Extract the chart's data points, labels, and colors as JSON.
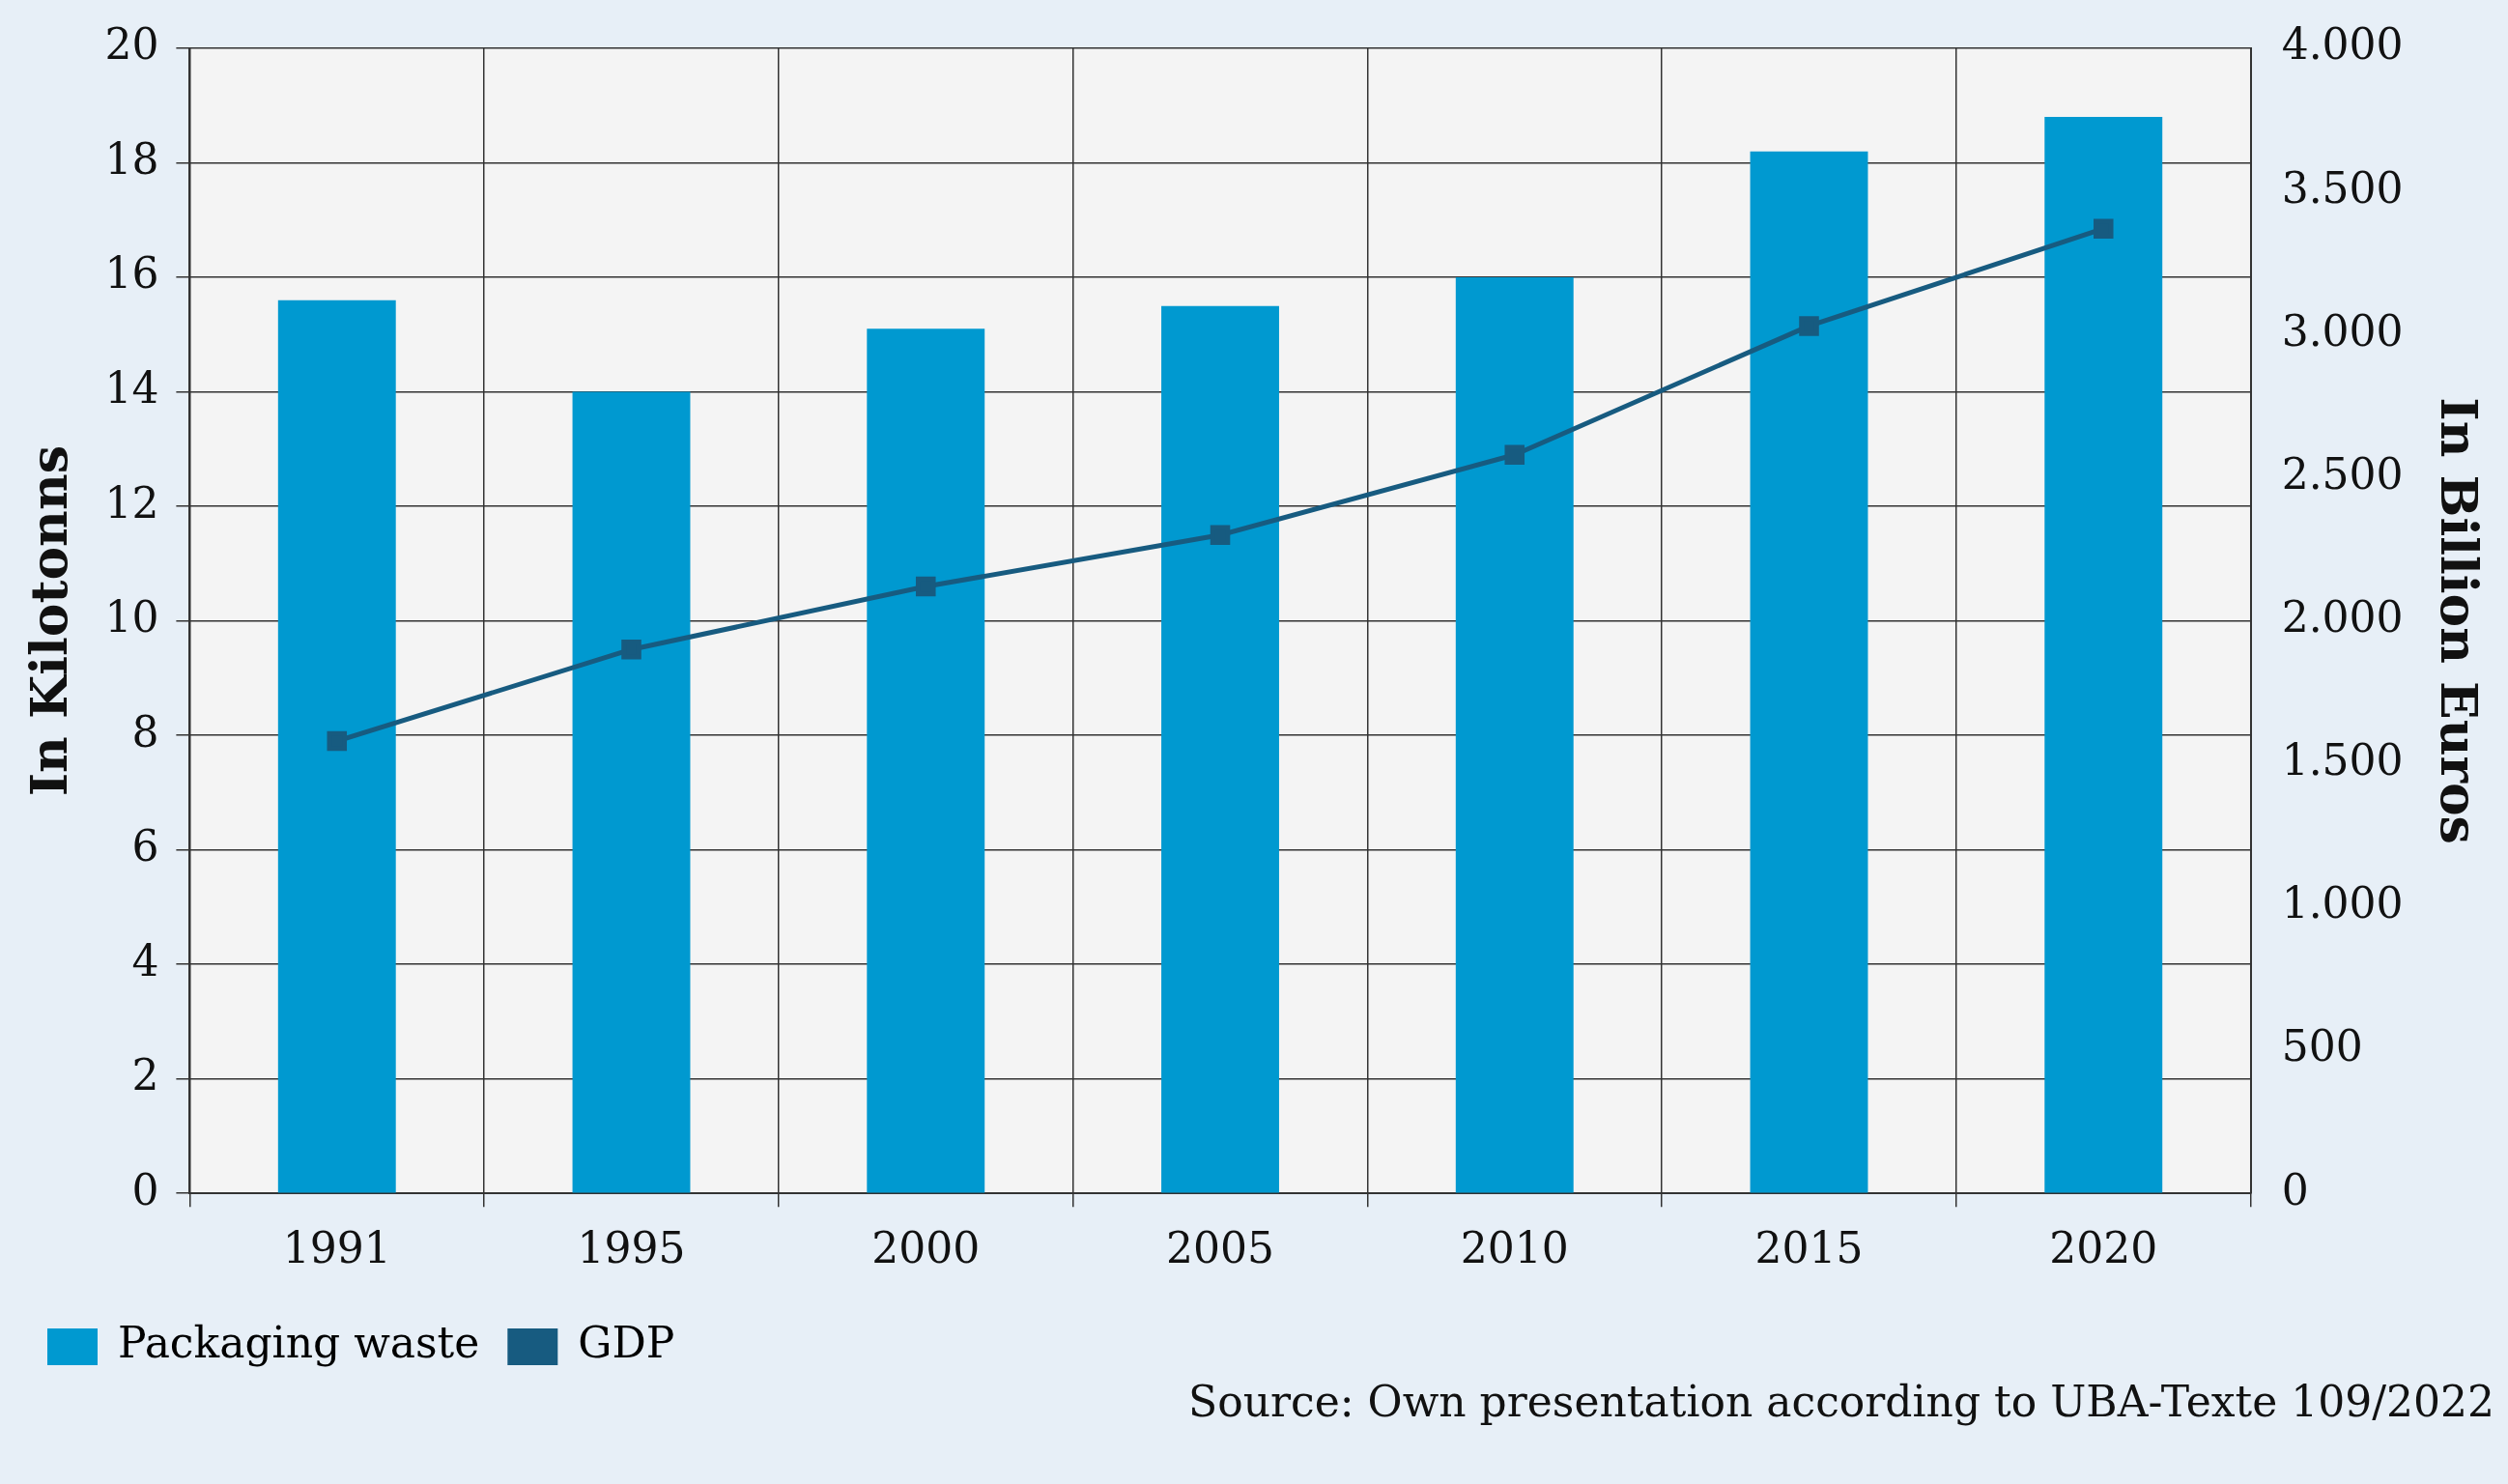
{
  "chart_data": {
    "type": "bar",
    "xlabel": null,
    "ylabel": "In Kilotonns",
    "y2label": "In Billion Euros",
    "categories": [
      "1991",
      "1995",
      "2000",
      "2005",
      "2010",
      "2015",
      "2020"
    ],
    "series": [
      {
        "name": "Packaging waste",
        "color": "#0099d0",
        "values": [
          15.6,
          14.0,
          15.1,
          15.5,
          16.0,
          18.2,
          18.8
        ]
      },
      {
        "name": "GDP",
        "type": "line",
        "axis": "y2",
        "color": "#175b80",
        "marker": "square",
        "values": [
          1580,
          1900,
          2120,
          2300,
          2580,
          3030,
          3370
        ]
      }
    ],
    "ylim": [
      0,
      20
    ],
    "yticks": [
      0,
      2,
      4,
      6,
      8,
      10,
      12,
      14,
      16,
      18,
      20
    ],
    "y2lim": [
      0,
      4000
    ],
    "y2ticks": [
      0,
      {
        "value": 500,
        "label": "500"
      },
      {
        "value": 1000,
        "label": "1.000"
      },
      {
        "value": 1500,
        "label": "1.500"
      },
      {
        "value": 2000,
        "label": "2.000"
      },
      {
        "value": 2500,
        "label": "2.500"
      },
      {
        "value": 3000,
        "label": "3.000"
      },
      {
        "value": 3500,
        "label": "3.500"
      },
      {
        "value": 4000,
        "label": "4.000"
      }
    ],
    "grid": true,
    "legend": "bottom left",
    "annotations": [
      "Source: Own presentation according to UBA-Texte 109/2022"
    ]
  }
}
